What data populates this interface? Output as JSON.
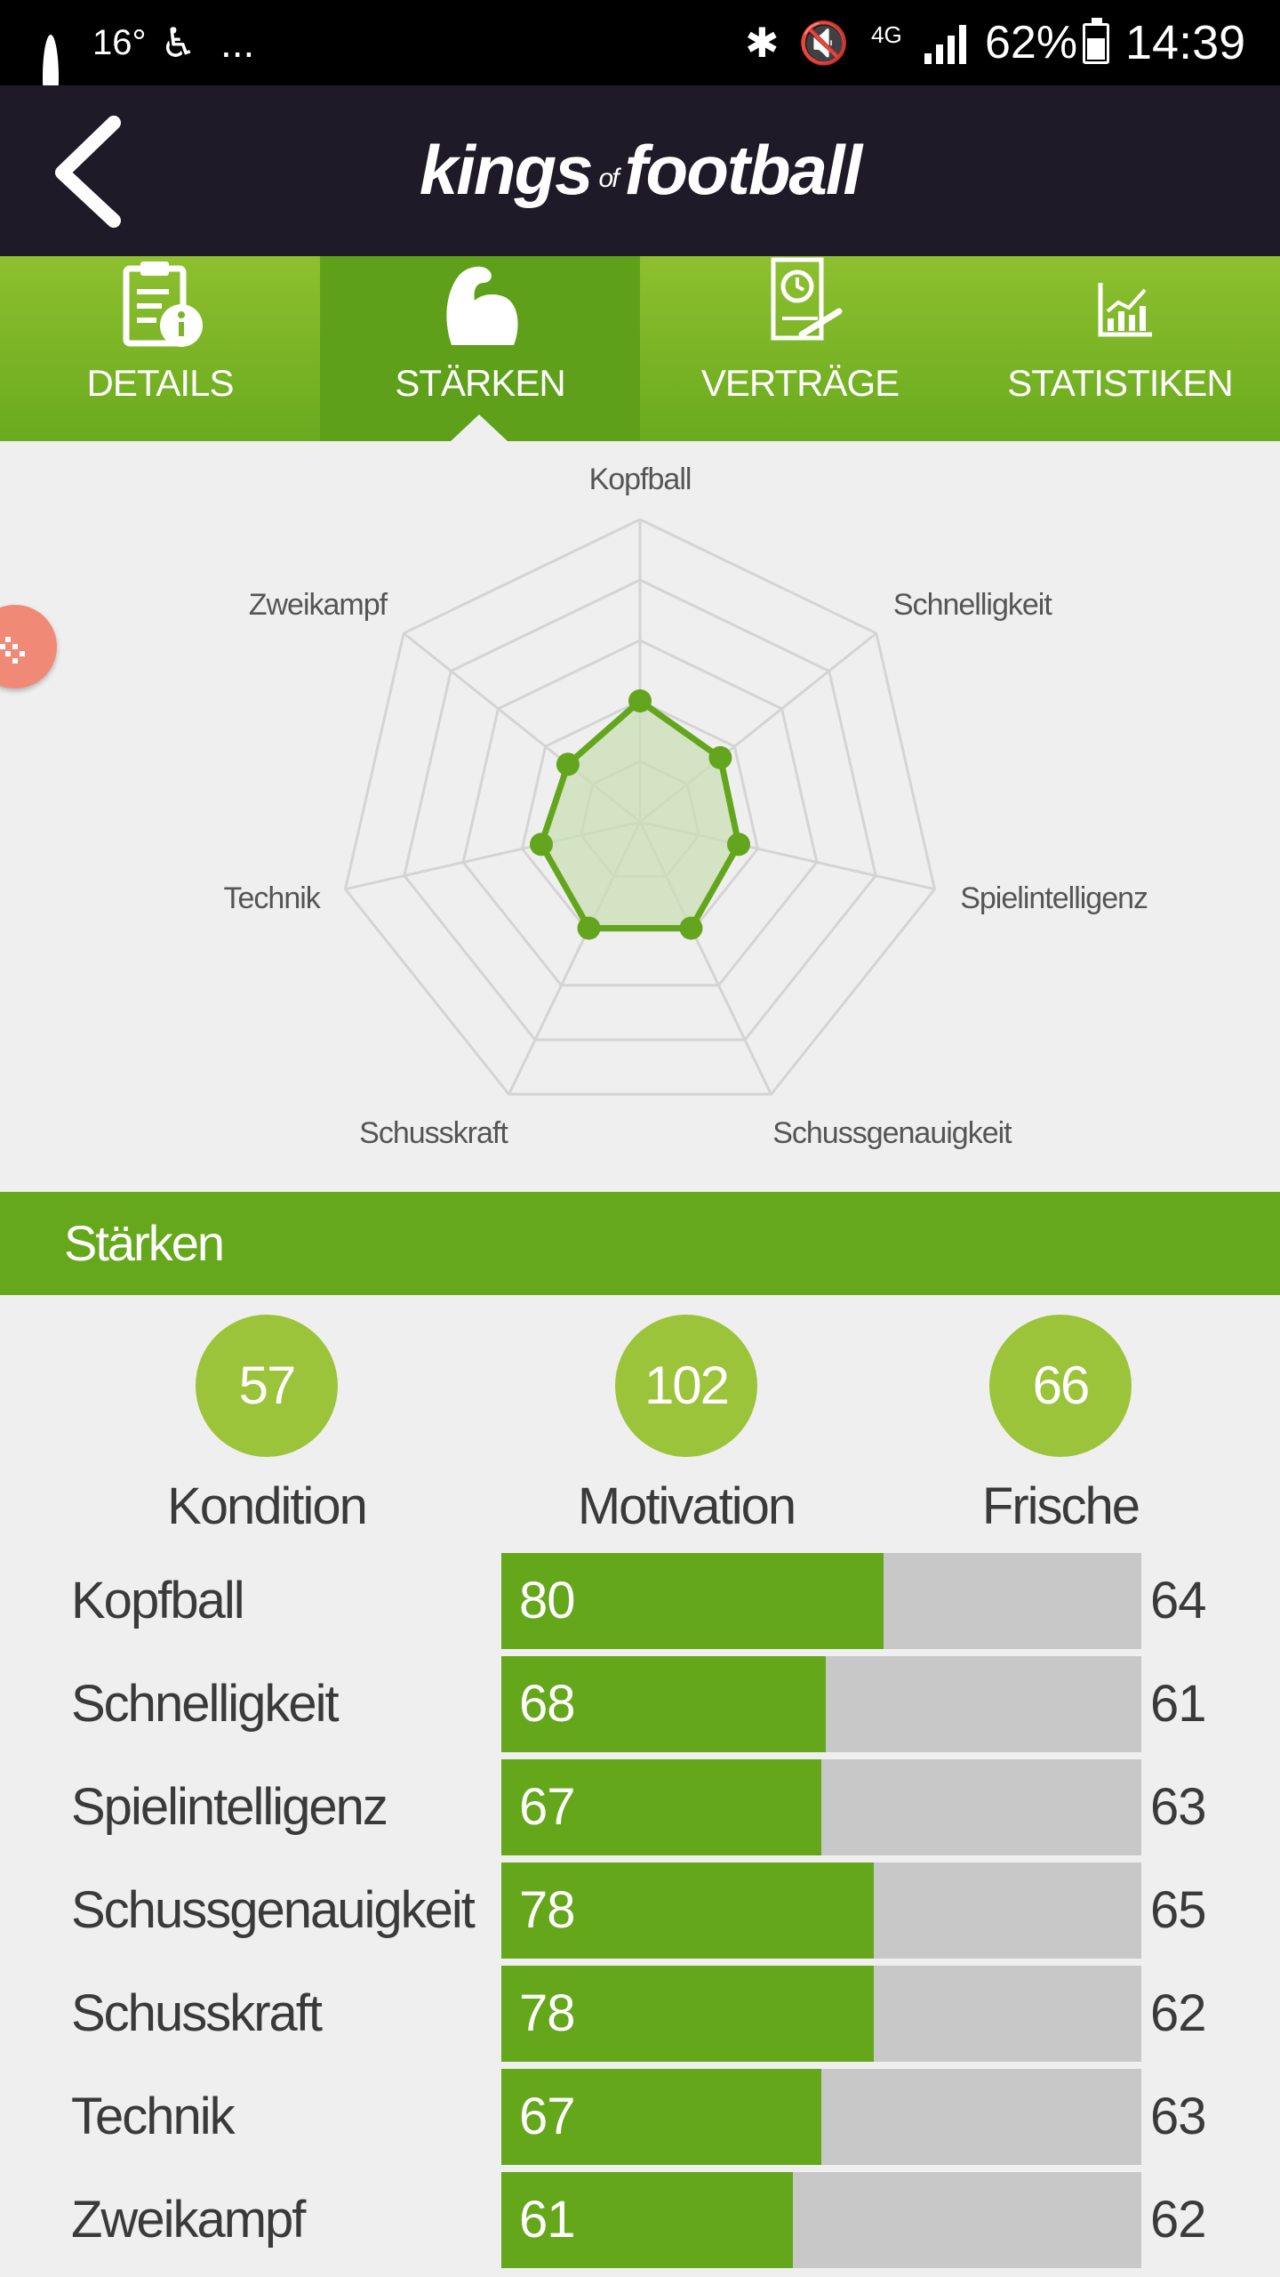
{
  "status_bar": {
    "temperature": "16°",
    "more": "...",
    "network": "4G",
    "battery": "62%",
    "time": "14:39"
  },
  "header": {
    "logo_part1": "kings",
    "logo_part2": "of",
    "logo_part3": "football"
  },
  "tabs": [
    {
      "label": "DETAILS",
      "icon": "clipboard-info-icon"
    },
    {
      "label": "STÄRKEN",
      "icon": "flexed-arm-icon",
      "active": true
    },
    {
      "label": "VERTRÄGE",
      "icon": "contract-icon"
    },
    {
      "label": "STATISTIKEN",
      "icon": "chart-icon"
    }
  ],
  "radar": {
    "axes": [
      "Kopfball",
      "Schnelligkeit",
      "Spielintelligenz",
      "Schussgenauigkeit",
      "Schusskraft",
      "Technik",
      "Zweikampf"
    ],
    "values": [
      80,
      68,
      67,
      78,
      78,
      67,
      61
    ],
    "max": 200,
    "colors": {
      "line": "#63a61d",
      "fill": "#c9dfb4",
      "grid": "#d4d4d4"
    }
  },
  "section": {
    "title": "Stärken"
  },
  "summary": [
    {
      "value": "57",
      "label": "Kondition"
    },
    {
      "value": "102",
      "label": "Motivation"
    },
    {
      "value": "66",
      "label": "Frische"
    }
  ],
  "attributes": [
    {
      "name": "Kopfball",
      "value": 80,
      "compare": 64
    },
    {
      "name": "Schnelligkeit",
      "value": 68,
      "compare": 61
    },
    {
      "name": "Spielintelligenz",
      "value": 67,
      "compare": 63
    },
    {
      "name": "Schussgenauigkeit",
      "value": 78,
      "compare": 65
    },
    {
      "name": "Schusskraft",
      "value": 78,
      "compare": 62
    },
    {
      "name": "Technik",
      "value": 67,
      "compare": 63
    },
    {
      "name": "Zweikampf",
      "value": 61,
      "compare": 62
    }
  ],
  "bar_max": 134
}
